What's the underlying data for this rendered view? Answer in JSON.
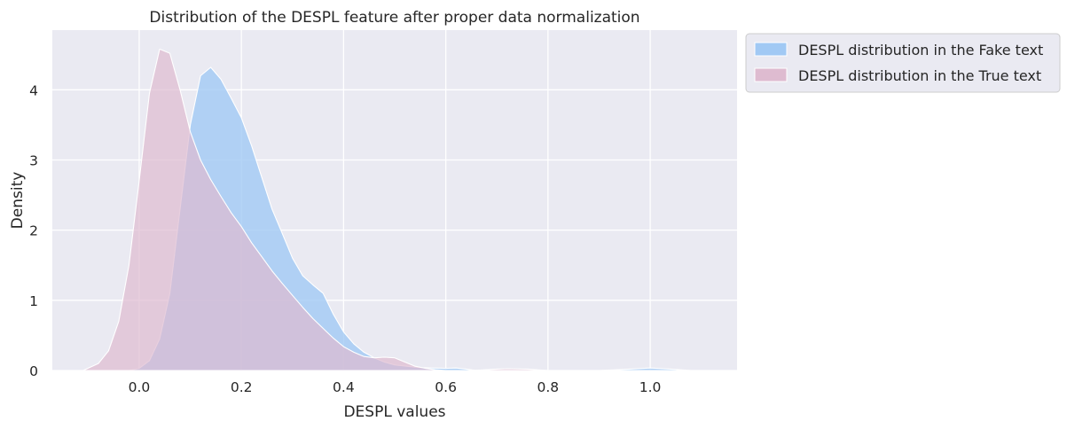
{
  "chart_data": {
    "type": "area",
    "title": "Distribution of the DESPL feature after proper data normalization",
    "xlabel": "DESPL values",
    "ylabel": "Density",
    "xlim": [
      -0.17,
      1.17
    ],
    "ylim": [
      0,
      4.85
    ],
    "xticks": [
      0.0,
      0.2,
      0.4,
      0.6,
      0.8,
      1.0
    ],
    "xtick_labels": [
      "0.0",
      "0.2",
      "0.4",
      "0.6",
      "0.8",
      "1.0"
    ],
    "yticks": [
      0,
      1,
      2,
      3,
      4
    ],
    "ytick_labels": [
      "0",
      "1",
      "2",
      "3",
      "4"
    ],
    "grid": true,
    "legend_position": "outside upper-right",
    "series": [
      {
        "name": "DESPL distribution in the Fake text",
        "color": "#a1c9f4",
        "x": [
          -0.02,
          0.0,
          0.02,
          0.04,
          0.06,
          0.08,
          0.1,
          0.12,
          0.14,
          0.16,
          0.18,
          0.2,
          0.22,
          0.24,
          0.26,
          0.28,
          0.3,
          0.32,
          0.34,
          0.36,
          0.38,
          0.4,
          0.42,
          0.44,
          0.46,
          0.48,
          0.5,
          0.55,
          0.6,
          0.62,
          0.64,
          0.66,
          0.7,
          0.9,
          0.96,
          1.0,
          1.04,
          1.08
        ],
        "y": [
          0.0,
          0.03,
          0.14,
          0.45,
          1.1,
          2.3,
          3.5,
          4.2,
          4.32,
          4.15,
          3.88,
          3.6,
          3.2,
          2.75,
          2.3,
          1.95,
          1.6,
          1.35,
          1.22,
          1.1,
          0.8,
          0.55,
          0.38,
          0.26,
          0.18,
          0.12,
          0.08,
          0.04,
          0.03,
          0.035,
          0.02,
          0.0,
          0.0,
          0.0,
          0.02,
          0.035,
          0.02,
          0.0
        ]
      },
      {
        "name": "DESPL distribution in the True text",
        "color": "#debbd0",
        "x": [
          -0.11,
          -0.08,
          -0.06,
          -0.04,
          -0.02,
          0.0,
          0.02,
          0.04,
          0.06,
          0.08,
          0.1,
          0.12,
          0.14,
          0.16,
          0.18,
          0.2,
          0.22,
          0.24,
          0.26,
          0.28,
          0.3,
          0.32,
          0.34,
          0.36,
          0.38,
          0.4,
          0.42,
          0.44,
          0.46,
          0.48,
          0.5,
          0.52,
          0.54,
          0.56,
          0.58,
          0.6,
          0.65,
          0.7,
          0.72,
          0.76,
          0.8
        ],
        "y": [
          0.0,
          0.1,
          0.28,
          0.7,
          1.5,
          2.7,
          3.95,
          4.58,
          4.52,
          4.0,
          3.4,
          3.0,
          2.72,
          2.48,
          2.25,
          2.05,
          1.82,
          1.62,
          1.42,
          1.24,
          1.07,
          0.9,
          0.74,
          0.6,
          0.46,
          0.34,
          0.26,
          0.2,
          0.18,
          0.19,
          0.18,
          0.12,
          0.06,
          0.03,
          0.01,
          0.0,
          0.0,
          0.02,
          0.025,
          0.02,
          0.0
        ]
      }
    ]
  }
}
